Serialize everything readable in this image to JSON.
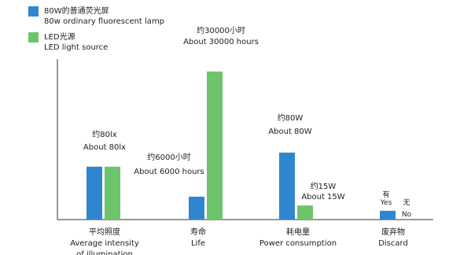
{
  "colors": {
    "fluorescent": "#2f86cf",
    "led": "#6cc56a",
    "axis": "#333333"
  },
  "legend": [
    {
      "color_key": "fluorescent",
      "name_cn": "80W的普通荧光屏",
      "name_en": "80w ordinary fluorescent lamp"
    },
    {
      "color_key": "led",
      "name_cn": "LED光源",
      "name_en": "LED light source"
    }
  ],
  "chart_data": {
    "type": "bar",
    "note": "Each category is independently scaled; heights are the relative bar levels as drawn (fraction of plot height).",
    "categories": [
      {
        "cn": "平均照度",
        "en": "Average intensity of illumination"
      },
      {
        "cn": "寿命",
        "en": "Life"
      },
      {
        "cn": "耗电量",
        "en": "Power consumption"
      },
      {
        "cn": "废弃物",
        "en": "Discard"
      }
    ],
    "series": [
      {
        "name": "80w ordinary fluorescent lamp",
        "color_key": "fluorescent",
        "levels": [
          0.3,
          0.13,
          0.38,
          0.05
        ],
        "labels": [
          [
            "约80lx",
            "About 80lx"
          ],
          [
            "约6000小时",
            "About 6000 hours"
          ],
          [
            "约80W",
            "About 80W"
          ],
          [
            "有",
            "Yes"
          ]
        ]
      },
      {
        "name": "LED light source",
        "color_key": "led",
        "levels": [
          0.3,
          0.84,
          0.08,
          0.0
        ],
        "labels": [
          [
            "",
            ""
          ],
          [
            "约30000小时",
            "About 30000 hours"
          ],
          [
            "约15W",
            "About 15W"
          ],
          [
            "无",
            "No"
          ]
        ]
      }
    ]
  }
}
